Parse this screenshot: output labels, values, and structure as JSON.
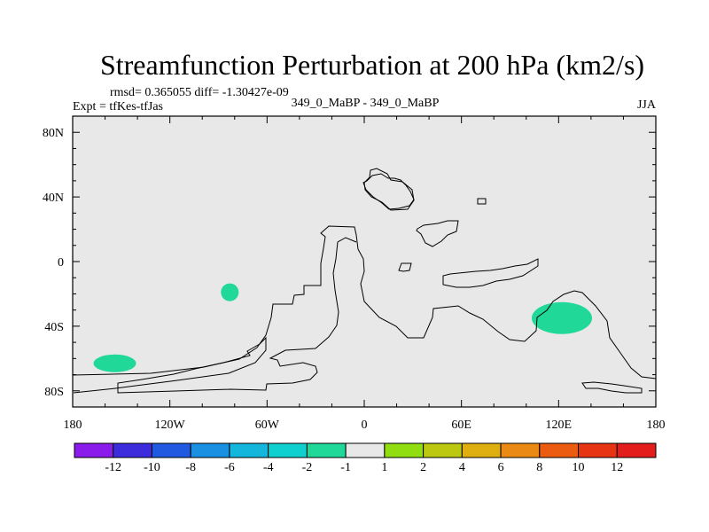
{
  "header": {
    "title": "Streamfunction Perturbation at 200 hPa (km2/s)",
    "stats": "rmsd= 0.365055 diff= -1.30427e-09",
    "experiment": "Expt = tfKes-tfJas",
    "comparison": "349_0_MaBP - 349_0_MaBP",
    "season": "JJA"
  },
  "chart_data": {
    "type": "heatmap",
    "title": "Streamfunction Perturbation at 200 hPa (km2/s)",
    "xlim": [
      -180,
      180
    ],
    "ylim": [
      -90,
      90
    ],
    "x_ticks": [
      {
        "value": -180,
        "label": "180"
      },
      {
        "value": -120,
        "label": "120W"
      },
      {
        "value": -60,
        "label": "60W"
      },
      {
        "value": 0,
        "label": "0"
      },
      {
        "value": 60,
        "label": "60E"
      },
      {
        "value": 120,
        "label": "120E"
      },
      {
        "value": 180,
        "label": "180"
      }
    ],
    "y_ticks": [
      {
        "value": 80,
        "label": "80N"
      },
      {
        "value": 40,
        "label": "40N"
      },
      {
        "value": 0,
        "label": "0"
      },
      {
        "value": -40,
        "label": "40S"
      },
      {
        "value": -80,
        "label": "80S"
      }
    ],
    "background_fill": "#e8e8e8",
    "anomalies": [
      {
        "lon": -154,
        "lat": -63,
        "category": "-2 to -1",
        "color": "#20d898"
      },
      {
        "lon": -83,
        "lat": -19,
        "category": "-2 to -1",
        "color": "#20d898"
      },
      {
        "lon": 122,
        "lat": -35,
        "category": "-2 to -1",
        "color": "#20d898"
      }
    ],
    "colorbar": {
      "colors": [
        "#8a1bea",
        "#3c2cdc",
        "#1f5ae0",
        "#1a90e2",
        "#15b6dc",
        "#10cfcf",
        "#20d898",
        "#e8e8e8",
        "#90dd10",
        "#bcc810",
        "#dfaf12",
        "#ea8a14",
        "#ec5c10",
        "#e73514",
        "#e31c1c"
      ],
      "labels": [
        "-12",
        "-10",
        "-8",
        "-6",
        "-4",
        "-2",
        "-1",
        "1",
        "2",
        "4",
        "6",
        "8",
        "10",
        "12"
      ]
    }
  }
}
